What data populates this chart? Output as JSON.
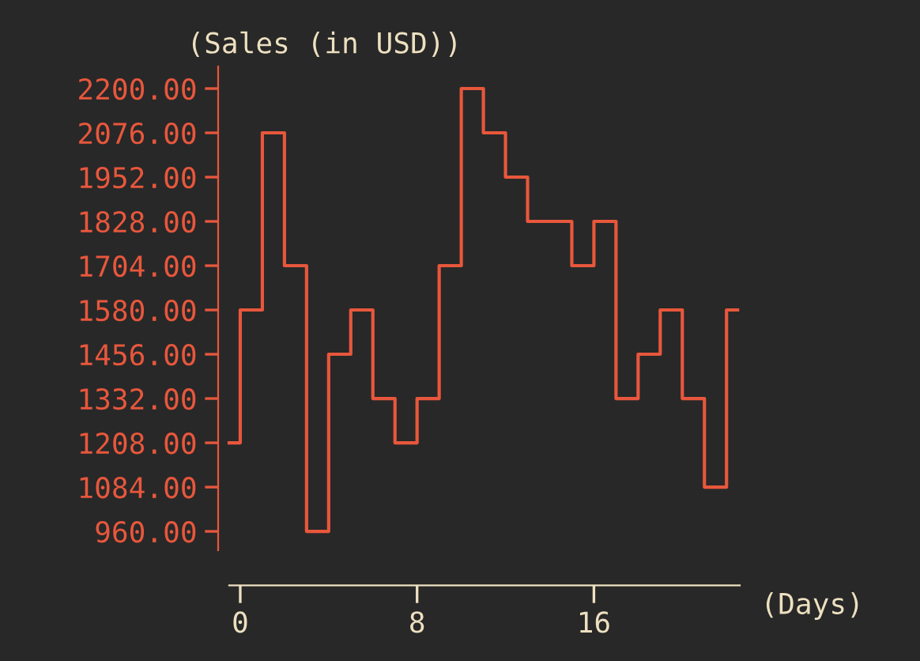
{
  "chart_data": {
    "type": "step",
    "ylabel": "(Sales (in USD))",
    "xlabel": "(Days)",
    "x": [
      -0.5,
      0.5,
      1.5,
      2.5,
      3.5,
      4.5,
      5.5,
      6.5,
      7.5,
      8.5,
      9.5,
      10.5,
      11.5,
      12.5,
      13.5,
      14.5,
      15.5,
      16.5,
      17.5,
      18.5,
      19.5,
      20.5,
      21.5,
      22.5
    ],
    "series": [
      {
        "color": "#e8573c",
        "values": [
          1208,
          1580,
          2076,
          1704,
          960,
          1456,
          1580,
          1332,
          1208,
          1332,
          1704,
          2200,
          2076,
          1952,
          1828,
          1828,
          1704,
          1828,
          1332,
          1456,
          1580,
          1332,
          1084,
          1580
        ]
      }
    ],
    "xlim": [
      -1,
      22.6
    ],
    "xticks": [
      0,
      8,
      16
    ],
    "ylim": [
      907,
      2262
    ],
    "yticks": [
      {
        "value": 960,
        "label": "960.00"
      },
      {
        "value": 1084,
        "label": "1084.00"
      },
      {
        "value": 1208,
        "label": "1208.00"
      },
      {
        "value": 1332,
        "label": "1332.00"
      },
      {
        "value": 1456,
        "label": "1456.00"
      },
      {
        "value": 1580,
        "label": "1580.00"
      },
      {
        "value": 1704,
        "label": "1704.00"
      },
      {
        "value": 1828,
        "label": "1828.00"
      },
      {
        "value": 1952,
        "label": "1952.00"
      },
      {
        "value": 2076,
        "label": "2076.00"
      },
      {
        "value": 2200,
        "label": "2200.00"
      }
    ],
    "grid": false,
    "legend": false
  }
}
